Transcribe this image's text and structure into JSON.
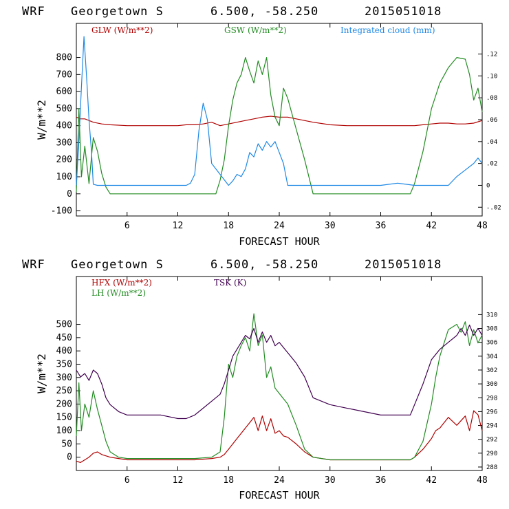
{
  "colors": {
    "red": "#b00000",
    "green": "#228b22",
    "blue": "#1e88e5",
    "purple": "#400050",
    "axis": "#000000"
  },
  "chart_data": [
    {
      "type": "line",
      "header": {
        "model": "WRF",
        "location": "Georgetown S",
        "coords": "6.500, -58.250",
        "run": "2015051018"
      },
      "ylabel": "W/m**2",
      "xlabel": "FORECAST HOUR",
      "xlim": [
        0,
        48
      ],
      "xticks": [
        6,
        12,
        18,
        24,
        30,
        36,
        42,
        48
      ],
      "ylim_left": [
        -130,
        1000
      ],
      "yticks_left": [
        -100,
        0,
        100,
        200,
        300,
        400,
        500,
        600,
        700,
        800
      ],
      "ylim_right": [
        -0.028,
        0.148
      ],
      "yticks_right": [
        -0.02,
        0,
        0.02,
        0.04,
        0.06,
        0.08,
        0.1,
        0.12
      ],
      "yticks_right_labels": [
        "-.02",
        "0",
        ".02",
        ".04",
        ".06",
        ".08",
        ".10",
        ".12"
      ],
      "series": [
        {
          "name": "GLW (W/m**2)",
          "color": "red",
          "axis": "left",
          "x": [
            0,
            0.5,
            1,
            1.5,
            2,
            3,
            4,
            6,
            8,
            10,
            12,
            13,
            14,
            15,
            16,
            17,
            18,
            19,
            20,
            21,
            22,
            23,
            24,
            25,
            26,
            28,
            30,
            32,
            34,
            36,
            38,
            40,
            41,
            42,
            43,
            44,
            45,
            46,
            47,
            48
          ],
          "y": [
            450,
            440,
            440,
            430,
            420,
            410,
            405,
            400,
            400,
            400,
            400,
            405,
            405,
            410,
            420,
            400,
            410,
            420,
            430,
            440,
            450,
            455,
            450,
            450,
            440,
            420,
            405,
            400,
            400,
            400,
            400,
            400,
            405,
            410,
            415,
            415,
            410,
            410,
            415,
            430
          ]
        },
        {
          "name": "GSW (W/m**2)",
          "color": "green",
          "axis": "left",
          "x": [
            0,
            0.3,
            0.6,
            1,
            1.5,
            2,
            2.5,
            3,
            3.5,
            4,
            16.5,
            17,
            17.5,
            18,
            18.5,
            19,
            19.5,
            20,
            20.5,
            21,
            21.5,
            22,
            22.5,
            23,
            23.5,
            24,
            24.5,
            25,
            26,
            27,
            28,
            39.5,
            40,
            41,
            42,
            43,
            44,
            45,
            46,
            46.5,
            47,
            47.5,
            48
          ],
          "y": [
            10,
            500,
            100,
            280,
            60,
            330,
            250,
            120,
            40,
            0,
            0,
            80,
            200,
            400,
            550,
            650,
            700,
            800,
            720,
            650,
            780,
            700,
            800,
            580,
            450,
            400,
            620,
            560,
            380,
            200,
            0,
            0,
            60,
            250,
            500,
            650,
            740,
            800,
            790,
            700,
            550,
            620,
            480
          ]
        },
        {
          "name": "Integrated cloud (mm)",
          "color": "blue",
          "axis": "right",
          "x": [
            0,
            0.3,
            0.6,
            0.9,
            1.2,
            1.5,
            1.8,
            2,
            2.5,
            3,
            13,
            13.5,
            14,
            14.5,
            15,
            15.5,
            16,
            18,
            18.5,
            19,
            19.5,
            20,
            20.5,
            21,
            21.5,
            22,
            22.5,
            23,
            23.5,
            24,
            24.5,
            25,
            36,
            37,
            38,
            39,
            40,
            44,
            45,
            46,
            47,
            47.5,
            48
          ],
          "y": [
            0,
            0.04,
            0.09,
            0.136,
            0.1,
            0.06,
            0.03,
            0.001,
            0,
            0,
            0,
            0.002,
            0.01,
            0.05,
            0.075,
            0.06,
            0.02,
            0,
            0.004,
            0.01,
            0.008,
            0.015,
            0.03,
            0.026,
            0.038,
            0.032,
            0.04,
            0.035,
            0.04,
            0.03,
            0.02,
            0,
            0,
            0.001,
            0.002,
            0.001,
            0,
            0,
            0.008,
            0.014,
            0.02,
            0.025,
            0.02
          ]
        }
      ]
    },
    {
      "type": "line",
      "header": {
        "model": "WRF",
        "location": "Georgetown S",
        "coords": "6.500, -58.250",
        "run": "2015051018"
      },
      "ylabel": "W/m**2",
      "xlabel": "FORECAST HOUR",
      "xlim": [
        0,
        48
      ],
      "xticks": [
        6,
        12,
        18,
        24,
        30,
        36,
        42,
        48
      ],
      "ylim_left": [
        -50,
        680
      ],
      "yticks_left": [
        0,
        50,
        100,
        150,
        200,
        250,
        300,
        350,
        400,
        450,
        500
      ],
      "ylim_right": [
        287.5,
        315.5
      ],
      "yticks_right": [
        288,
        290,
        292,
        294,
        296,
        298,
        300,
        302,
        304,
        306,
        308,
        310
      ],
      "series": [
        {
          "name": "HFX (W/m**2)",
          "color": "red",
          "axis": "left",
          "x": [
            0,
            0.5,
            1,
            1.5,
            2,
            2.5,
            3,
            4,
            5,
            6,
            10,
            14,
            16,
            17,
            17.5,
            18,
            18.5,
            19,
            19.5,
            20,
            20.5,
            21,
            21.5,
            22,
            22.5,
            23,
            23.5,
            24,
            24.5,
            25,
            26,
            27,
            28,
            30,
            36,
            39.5,
            40,
            41,
            42,
            42.5,
            43,
            44,
            45,
            46,
            46.5,
            47,
            47.5,
            48
          ],
          "y": [
            -15,
            -20,
            -10,
            0,
            15,
            20,
            10,
            0,
            -5,
            -10,
            -10,
            -10,
            -5,
            0,
            10,
            30,
            50,
            70,
            90,
            110,
            130,
            150,
            100,
            155,
            100,
            145,
            90,
            100,
            80,
            75,
            50,
            20,
            0,
            -10,
            -10,
            -10,
            0,
            30,
            70,
            100,
            110,
            150,
            120,
            155,
            100,
            175,
            160,
            100
          ]
        },
        {
          "name": "LH (W/m**2)",
          "color": "green",
          "axis": "left",
          "x": [
            0,
            0.3,
            0.6,
            1,
            1.5,
            2,
            2.5,
            3,
            3.5,
            4,
            5,
            6,
            10,
            14,
            16,
            17,
            17.5,
            18,
            18.5,
            19,
            19.5,
            20,
            20.5,
            21,
            21.5,
            22,
            22.5,
            23,
            23.5,
            24,
            25,
            26,
            27,
            28,
            30,
            36,
            39.5,
            40,
            41,
            42,
            42.5,
            43,
            44,
            45,
            45.5,
            46,
            46.5,
            47,
            47.5,
            48
          ],
          "y": [
            80,
            280,
            100,
            200,
            150,
            250,
            180,
            120,
            60,
            20,
            0,
            -5,
            -5,
            -5,
            0,
            20,
            150,
            350,
            300,
            380,
            420,
            450,
            400,
            540,
            420,
            460,
            300,
            340,
            260,
            240,
            200,
            120,
            30,
            0,
            -10,
            -10,
            -10,
            0,
            60,
            200,
            300,
            380,
            480,
            500,
            470,
            510,
            420,
            480,
            430,
            460
          ]
        },
        {
          "name": "TSK (K)",
          "color": "purple",
          "axis": "right",
          "x": [
            0,
            0.5,
            1,
            1.5,
            2,
            2.5,
            3,
            3.5,
            4,
            5,
            6,
            8,
            10,
            12,
            13,
            14,
            15,
            16,
            17,
            17.5,
            18,
            18.5,
            19,
            19.5,
            20,
            20.5,
            21,
            21.5,
            22,
            22.5,
            23,
            23.5,
            24,
            25,
            26,
            27,
            28,
            30,
            32,
            34,
            36,
            38,
            39.5,
            40,
            41,
            42,
            43,
            44,
            45,
            45.5,
            46,
            46.5,
            47,
            47.5,
            48
          ],
          "y": [
            302,
            301,
            301.5,
            300.5,
            302,
            301.5,
            300,
            298,
            297,
            296,
            295.5,
            295.5,
            295.5,
            295,
            295,
            295.5,
            296.5,
            297.5,
            298.5,
            300,
            302,
            304,
            305,
            306,
            307,
            306.5,
            308,
            306,
            307.5,
            306,
            307,
            305.5,
            306,
            304.5,
            303,
            301,
            298,
            297,
            296.5,
            296,
            295.5,
            295.5,
            295.5,
            297,
            300,
            303.5,
            305,
            306,
            307,
            308,
            307,
            308.5,
            307,
            308,
            307
          ]
        }
      ]
    }
  ]
}
